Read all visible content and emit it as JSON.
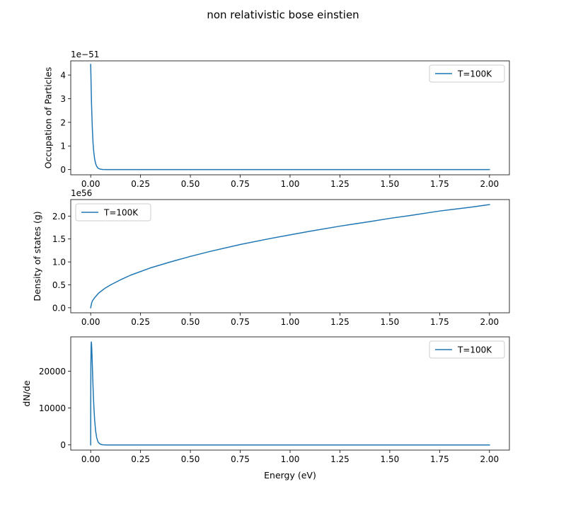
{
  "figure": {
    "suptitle": "non relativistic bose einstien"
  },
  "chart_data": [
    {
      "type": "line",
      "title": "",
      "xlabel": "Energy (eV)",
      "ylabel": "Occupation of Particles",
      "offset_text": "1e−51",
      "xlim": [
        -0.1,
        2.1
      ],
      "ylim": [
        -0.22,
        4.6
      ],
      "x_ticks": [
        0.0,
        0.25,
        0.5,
        0.75,
        1.0,
        1.25,
        1.5,
        1.75,
        2.0
      ],
      "x_tick_labels": [
        "0.00",
        "0.25",
        "0.50",
        "0.75",
        "1.00",
        "1.25",
        "1.50",
        "1.75",
        "2.00"
      ],
      "y_ticks": [
        0,
        1,
        2,
        3,
        4
      ],
      "y_tick_labels": [
        "0",
        "1",
        "2",
        "3",
        "4"
      ],
      "legend_position": "upper right",
      "color": "#1f77b4",
      "series": [
        {
          "name": "T=100K",
          "x": [
            0.0,
            0.004,
            0.008,
            0.012,
            0.016,
            0.02,
            0.025,
            0.03,
            0.035,
            0.04,
            0.05,
            0.06,
            0.08,
            0.1,
            0.2,
            0.5,
            1.0,
            1.5,
            2.0
          ],
          "y": [
            4.45,
            2.83,
            1.78,
            1.1,
            0.7,
            0.44,
            0.25,
            0.14,
            0.08,
            0.045,
            0.014,
            0.004,
            0.0004,
            0.0,
            0.0,
            0.0,
            0.0,
            0.0,
            0.0
          ]
        }
      ]
    },
    {
      "type": "line",
      "title": "",
      "xlabel": "Energy (eV)",
      "ylabel": "Density of states (g)",
      "offset_text": "1e56",
      "xlim": [
        -0.1,
        2.1
      ],
      "ylim": [
        -0.11,
        2.36
      ],
      "x_ticks": [
        0.0,
        0.25,
        0.5,
        0.75,
        1.0,
        1.25,
        1.5,
        1.75,
        2.0
      ],
      "x_tick_labels": [
        "0.00",
        "0.25",
        "0.50",
        "0.75",
        "1.00",
        "1.25",
        "1.50",
        "1.75",
        "2.00"
      ],
      "y_ticks": [
        0.0,
        0.5,
        1.0,
        1.5,
        2.0
      ],
      "y_tick_labels": [
        "0.0",
        "0.5",
        "1.0",
        "1.5",
        "2.0"
      ],
      "legend_position": "upper left",
      "color": "#1f77b4",
      "series": [
        {
          "name": "T=100K",
          "x": [
            0.0,
            0.005,
            0.01,
            0.02,
            0.04,
            0.07,
            0.1,
            0.15,
            0.2,
            0.3,
            0.4,
            0.5,
            0.6,
            0.75,
            0.9,
            1.0,
            1.1,
            1.25,
            1.4,
            1.5,
            1.6,
            1.75,
            1.9,
            2.0
          ],
          "y": [
            0.0,
            0.11,
            0.16,
            0.22,
            0.32,
            0.42,
            0.5,
            0.61,
            0.71,
            0.87,
            1.0,
            1.12,
            1.23,
            1.38,
            1.51,
            1.59,
            1.67,
            1.78,
            1.88,
            1.95,
            2.01,
            2.11,
            2.19,
            2.25
          ]
        }
      ]
    },
    {
      "type": "line",
      "title": "",
      "xlabel": "Energy (eV)",
      "ylabel": "dN/de",
      "offset_text": "",
      "xlim": [
        -0.1,
        2.1
      ],
      "ylim": [
        -1400,
        29300
      ],
      "x_ticks": [
        0.0,
        0.25,
        0.5,
        0.75,
        1.0,
        1.25,
        1.5,
        1.75,
        2.0
      ],
      "x_tick_labels": [
        "0.00",
        "0.25",
        "0.50",
        "0.75",
        "1.00",
        "1.25",
        "1.50",
        "1.75",
        "2.00"
      ],
      "y_ticks": [
        0,
        10000,
        20000
      ],
      "y_tick_labels": [
        "0",
        "10000",
        "20000"
      ],
      "legend_position": "upper right",
      "color": "#1f77b4",
      "series": [
        {
          "name": "T=100K",
          "x": [
            0.0,
            0.0005,
            0.001,
            0.002,
            0.003,
            0.004,
            0.005,
            0.006,
            0.008,
            0.01,
            0.013,
            0.016,
            0.02,
            0.025,
            0.03,
            0.035,
            0.04,
            0.05,
            0.06,
            0.08,
            0.1,
            0.2,
            0.5,
            1.0,
            1.5,
            2.0
          ],
          "y": [
            0,
            16000,
            22000,
            26500,
            27900,
            27600,
            26600,
            25200,
            22000,
            18500,
            14000,
            10300,
            6600,
            3700,
            2000,
            1080,
            570,
            160,
            40,
            3,
            0,
            0,
            0,
            0,
            0,
            0
          ]
        }
      ]
    }
  ]
}
